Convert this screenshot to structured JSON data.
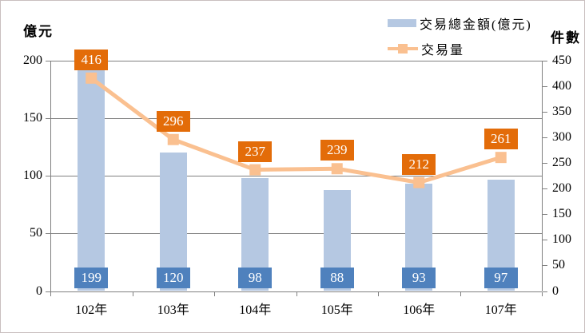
{
  "chart_data": {
    "type": "bar+line combo",
    "categories": [
      "102年",
      "103年",
      "104年",
      "105年",
      "106年",
      "107年"
    ],
    "series": [
      {
        "name": "交易總金額(億元)",
        "type": "bar",
        "axis": "left",
        "values": [
          199,
          120,
          98,
          88,
          93,
          97
        ]
      },
      {
        "name": "交易量",
        "type": "line",
        "axis": "right",
        "values": [
          416,
          296,
          237,
          239,
          212,
          261
        ]
      }
    ],
    "left_axis": {
      "label": "億元",
      "min": 0,
      "max": 200,
      "step": 50,
      "ticks": [
        0,
        50,
        100,
        150,
        200
      ]
    },
    "right_axis": {
      "label": "件數",
      "min": 0,
      "max": 450,
      "step": 50,
      "ticks": [
        0,
        50,
        100,
        150,
        200,
        250,
        300,
        350,
        400,
        450
      ]
    },
    "grid": "horizontal gridlines at left-axis major units",
    "legend_position": "top",
    "title": "",
    "colors": {
      "bar_fill": "#b5c8e2",
      "bar_label_bg": "#4f81bd",
      "line_stroke": "#fac090",
      "marker_fill": "#fac090",
      "line_label_bg": "#e36c09",
      "label_text": "#ffffff",
      "grid_line": "#808080",
      "axis_line": "#808080",
      "text": "#000000",
      "border": "#c9bfbf"
    }
  }
}
